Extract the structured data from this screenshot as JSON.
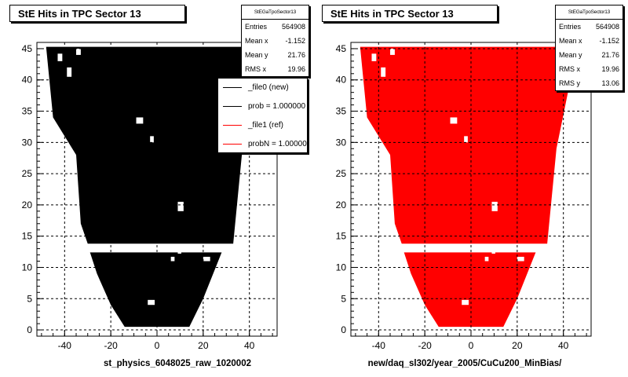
{
  "chart_data": [
    {
      "type": "heatmap",
      "title": "StE Hits in TPC Sector 13",
      "xlabel": "st_physics_6048025_raw_1020002",
      "ylabel": "",
      "xlim": [
        -52,
        52
      ],
      "ylim": [
        -1,
        46
      ],
      "xticks": [
        -40,
        -20,
        0,
        20,
        40
      ],
      "yticks": [
        0,
        5,
        10,
        15,
        20,
        25,
        30,
        35,
        40,
        45
      ],
      "grid": true,
      "fill_color": "#000000",
      "stats": {
        "name": "StEGaTpoSector13",
        "entries": "564908",
        "mean_x": "-1.152",
        "mean_y": "21.76",
        "rms_x": "19.96"
      },
      "legend": [
        {
          "label": "_file0 (new)",
          "color": "#000000"
        },
        {
          "label": "prob = 1.000000",
          "color": "#000000"
        },
        {
          "label": "_file1 (ref)",
          "color": "#ff0000"
        },
        {
          "label": "probN = 1.000000",
          "color": "#ff0000"
        }
      ]
    },
    {
      "type": "heatmap",
      "title": "StE Hits in TPC Sector 13",
      "xlabel": "new/daq_sl302/year_2005/CuCu200_MinBias/",
      "ylabel": "",
      "xlim": [
        -52,
        52
      ],
      "ylim": [
        -1,
        46
      ],
      "xticks": [
        -40,
        -20,
        0,
        20,
        40
      ],
      "yticks": [
        0,
        5,
        10,
        15,
        20,
        25,
        30,
        35,
        40,
        45
      ],
      "grid": true,
      "fill_color": "#ff0000",
      "stats": {
        "name": "StEGaTpoSector13",
        "entries": "564908",
        "mean_x": "-1.152",
        "mean_y": "21.76",
        "rms_x": "19.96",
        "rms_y": "13.06"
      }
    }
  ]
}
